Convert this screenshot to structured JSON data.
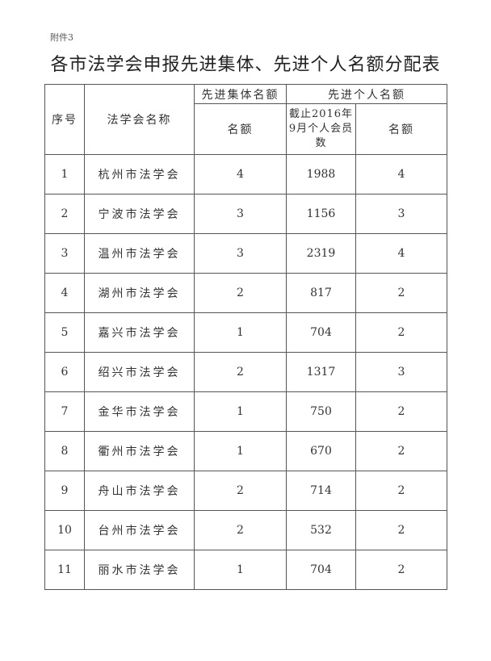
{
  "attachment_label": "附件3",
  "title": "各市法学会申报先进集体、先进个人名额分配表",
  "table": {
    "headers": {
      "seq": "序号",
      "name": "法学会名称",
      "collective_group": "先进集体名额",
      "collective_quota": "名额",
      "individual_group": "先进个人名额",
      "members": "截止2016年9月个人会员数",
      "individual_quota": "名额"
    },
    "rows": [
      {
        "seq": "1",
        "name": "杭州市法学会",
        "collective": "4",
        "members": "1988",
        "individual": "4"
      },
      {
        "seq": "2",
        "name": "宁波市法学会",
        "collective": "3",
        "members": "1156",
        "individual": "3"
      },
      {
        "seq": "3",
        "name": "温州市法学会",
        "collective": "3",
        "members": "2319",
        "individual": "4"
      },
      {
        "seq": "4",
        "name": "湖州市法学会",
        "collective": "2",
        "members": "817",
        "individual": "2"
      },
      {
        "seq": "5",
        "name": "嘉兴市法学会",
        "collective": "1",
        "members": "704",
        "individual": "2"
      },
      {
        "seq": "6",
        "name": "绍兴市法学会",
        "collective": "2",
        "members": "1317",
        "individual": "3"
      },
      {
        "seq": "7",
        "name": "金华市法学会",
        "collective": "1",
        "members": "750",
        "individual": "2"
      },
      {
        "seq": "8",
        "name": "衢州市法学会",
        "collective": "1",
        "members": "670",
        "individual": "2"
      },
      {
        "seq": "9",
        "name": "舟山市法学会",
        "collective": "2",
        "members": "714",
        "individual": "2"
      },
      {
        "seq": "10",
        "name": "台州市法学会",
        "collective": "2",
        "members": "532",
        "individual": "2"
      },
      {
        "seq": "11",
        "name": "丽水市法学会",
        "collective": "1",
        "members": "704",
        "individual": "2"
      }
    ]
  }
}
